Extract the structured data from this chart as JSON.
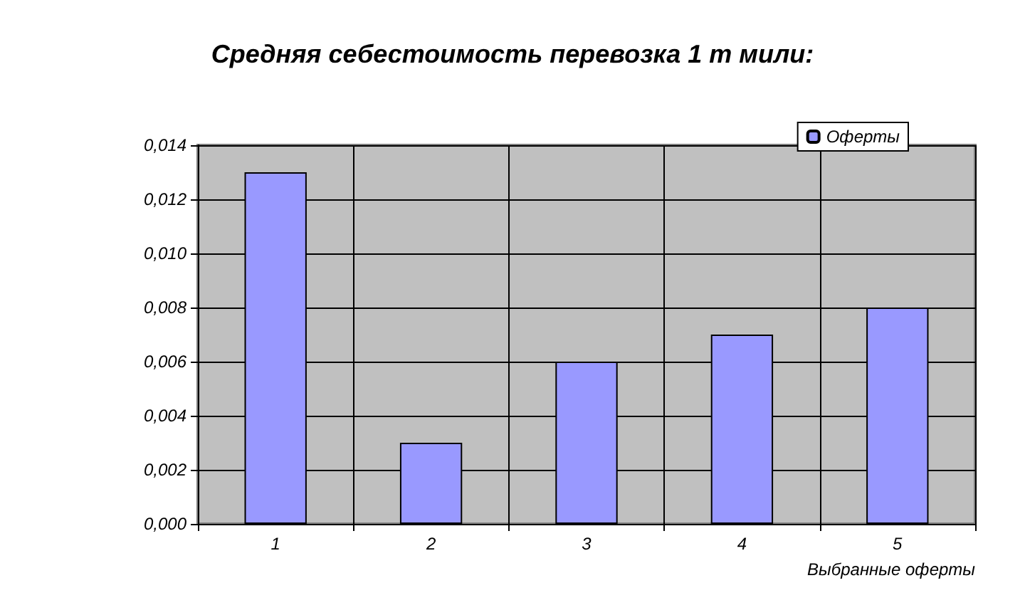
{
  "chart_data": {
    "type": "bar",
    "title": "Средняя себестоимость перевозка 1 т мили:",
    "xlabel": "Выбранные оферты",
    "categories": [
      "1",
      "2",
      "3",
      "4",
      "5"
    ],
    "series": [
      {
        "name": "Оферты",
        "color": "#9999ff",
        "values": [
          0.013,
          0.003,
          0.006,
          0.007,
          0.008
        ]
      }
    ],
    "ylim": [
      0,
      0.014
    ],
    "yticks": [
      {
        "value": 0,
        "label": "0,000"
      },
      {
        "value": 0.002,
        "label": "0,002"
      },
      {
        "value": 0.004,
        "label": "0,004"
      },
      {
        "value": 0.006,
        "label": "0,006"
      },
      {
        "value": 0.008,
        "label": "0,008"
      },
      {
        "value": 0.01,
        "label": "0,010"
      },
      {
        "value": 0.012,
        "label": "0,012"
      },
      {
        "value": 0.014,
        "label": "0,014"
      }
    ],
    "grid": true,
    "legend": "top right"
  }
}
